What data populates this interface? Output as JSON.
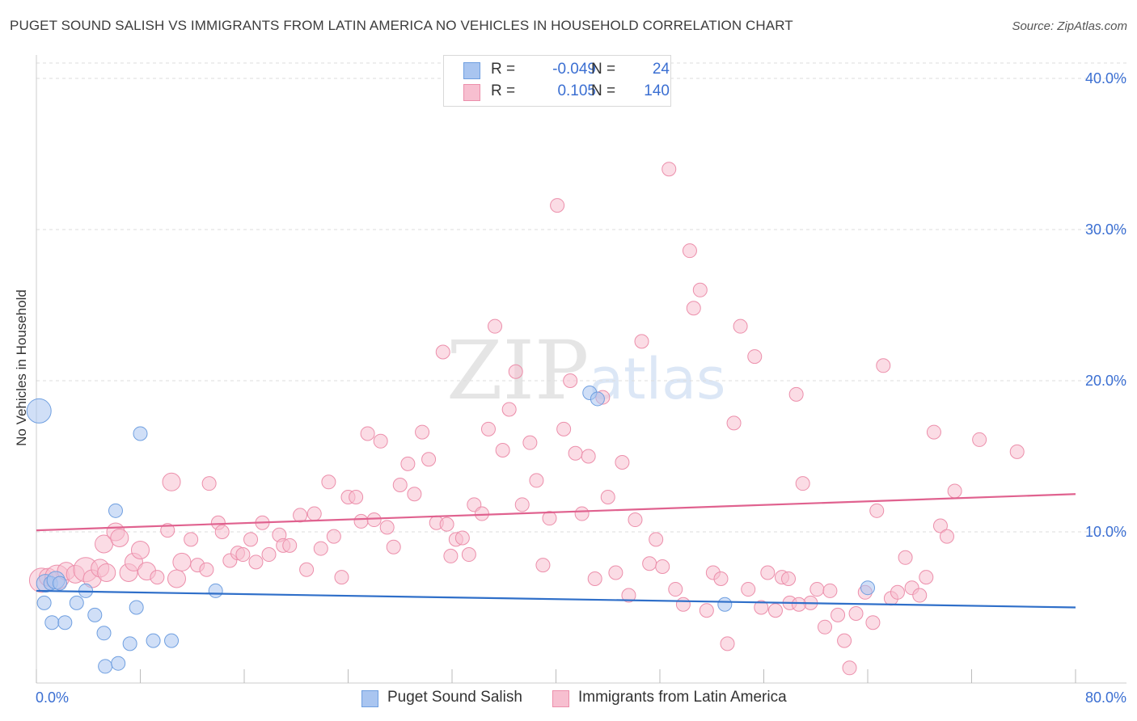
{
  "header": {
    "title": "PUGET SOUND SALISH VS IMMIGRANTS FROM LATIN AMERICA NO VEHICLES IN HOUSEHOLD CORRELATION CHART",
    "source": "Source: ZipAtlas.com"
  },
  "watermark": {
    "zip": "ZIP",
    "atlas": "atlas"
  },
  "legend": {
    "rows": [
      {
        "r_label": "R =",
        "r_value": "-0.049",
        "n_label": "N =",
        "n_value": "24",
        "color": "#a9c5f0",
        "border": "#6f9fe0"
      },
      {
        "r_label": "R =",
        "r_value": "0.105",
        "n_label": "N =",
        "n_value": "140",
        "color": "#f7bfd0",
        "border": "#ec8fab"
      }
    ]
  },
  "bottom_legend": [
    {
      "label": "Puget Sound Salish",
      "color": "#a9c5f0",
      "border": "#6f9fe0"
    },
    {
      "label": "Immigrants from Latin America",
      "color": "#f7bfd0",
      "border": "#ec8fab"
    }
  ],
  "chart_data": {
    "type": "scatter",
    "title": "PUGET SOUND SALISH VS IMMIGRANTS FROM LATIN AMERICA NO VEHICLES IN HOUSEHOLD CORRELATION CHART",
    "xlabel": "",
    "ylabel": "No Vehicles in Household",
    "xlim": [
      0,
      80
    ],
    "ylim": [
      0,
      40
    ],
    "x_tick_labels": [
      "0.0%",
      "80.0%"
    ],
    "y_tick_labels": [
      "10.0%",
      "20.0%",
      "30.0%",
      "40.0%"
    ],
    "y_ticks": [
      10,
      20,
      30,
      40
    ],
    "grid": true,
    "legend_position": "top-center",
    "series": [
      {
        "name": "Puget Sound Salish",
        "color": "#a9c5f0",
        "stroke": "#6f9fe0",
        "trend": {
          "x": [
            0,
            80
          ],
          "y": [
            6.1,
            5.0
          ],
          "color": "#2f6fc9"
        },
        "points": [
          [
            0.2,
            18.0,
            3
          ],
          [
            0.7,
            6.6,
            2
          ],
          [
            1.1,
            6.6,
            1
          ],
          [
            1.5,
            6.8,
            2
          ],
          [
            1.8,
            6.6,
            1
          ],
          [
            0.6,
            5.3,
            1
          ],
          [
            1.2,
            4.0,
            1
          ],
          [
            2.2,
            4.0,
            1
          ],
          [
            3.1,
            5.3,
            1
          ],
          [
            3.8,
            6.1,
            1
          ],
          [
            4.5,
            4.5,
            1
          ],
          [
            5.2,
            3.3,
            1
          ],
          [
            6.1,
            11.4,
            1
          ],
          [
            7.7,
            5.0,
            1
          ],
          [
            8.0,
            16.5,
            1
          ],
          [
            7.2,
            2.6,
            1
          ],
          [
            9.0,
            2.8,
            1
          ],
          [
            10.4,
            2.8,
            1
          ],
          [
            13.8,
            6.1,
            1
          ],
          [
            5.3,
            1.1,
            1
          ],
          [
            6.3,
            1.3,
            1
          ],
          [
            42.6,
            19.2,
            1
          ],
          [
            43.2,
            18.8,
            1
          ],
          [
            53.0,
            5.2,
            1
          ],
          [
            64.0,
            6.3,
            1
          ]
        ]
      },
      {
        "name": "Immigrants from Latin America",
        "color": "#f7bfd0",
        "stroke": "#ec8fab",
        "trend": {
          "x": [
            0,
            80
          ],
          "y": [
            10.1,
            12.5
          ],
          "color": "#e0628f"
        },
        "points": [
          [
            0.4,
            6.8,
            3
          ],
          [
            0.9,
            7.0,
            2
          ],
          [
            1.6,
            7.0,
            3
          ],
          [
            2.3,
            7.4,
            2
          ],
          [
            3.0,
            7.2,
            2
          ],
          [
            3.8,
            7.5,
            3
          ],
          [
            4.3,
            6.9,
            2
          ],
          [
            4.9,
            7.6,
            2
          ],
          [
            5.4,
            7.3,
            2
          ],
          [
            5.2,
            9.2,
            2
          ],
          [
            6.1,
            10.0,
            2
          ],
          [
            6.4,
            9.6,
            2
          ],
          [
            7.1,
            7.3,
            2
          ],
          [
            7.5,
            8.0,
            2
          ],
          [
            8.0,
            8.8,
            2
          ],
          [
            8.5,
            7.4,
            2
          ],
          [
            9.3,
            7.0,
            1
          ],
          [
            10.1,
            10.1,
            1
          ],
          [
            10.4,
            13.3,
            2
          ],
          [
            10.8,
            6.9,
            2
          ],
          [
            11.2,
            8.0,
            2
          ],
          [
            11.9,
            9.5,
            1
          ],
          [
            12.4,
            7.8,
            1
          ],
          [
            13.1,
            7.5,
            1
          ],
          [
            13.3,
            13.2,
            1
          ],
          [
            14.0,
            10.6,
            1
          ],
          [
            14.3,
            10.0,
            1
          ],
          [
            14.9,
            8.1,
            1
          ],
          [
            15.5,
            8.6,
            1
          ],
          [
            15.9,
            8.5,
            1
          ],
          [
            16.5,
            9.5,
            1
          ],
          [
            16.9,
            8.0,
            1
          ],
          [
            17.4,
            10.6,
            1
          ],
          [
            17.9,
            8.5,
            1
          ],
          [
            18.7,
            9.8,
            1
          ],
          [
            19.0,
            9.1,
            1
          ],
          [
            19.5,
            9.1,
            1
          ],
          [
            20.3,
            11.1,
            1
          ],
          [
            20.8,
            7.5,
            1
          ],
          [
            21.4,
            11.2,
            1
          ],
          [
            21.9,
            8.9,
            1
          ],
          [
            22.5,
            13.3,
            1
          ],
          [
            22.9,
            9.7,
            1
          ],
          [
            23.5,
            7.0,
            1
          ],
          [
            24.0,
            12.3,
            1
          ],
          [
            24.6,
            12.3,
            1
          ],
          [
            25.0,
            10.7,
            1
          ],
          [
            25.5,
            16.5,
            1
          ],
          [
            26.0,
            10.8,
            1
          ],
          [
            26.5,
            16.0,
            1
          ],
          [
            27.0,
            10.3,
            1
          ],
          [
            27.5,
            9.0,
            1
          ],
          [
            28.0,
            13.1,
            1
          ],
          [
            28.6,
            14.5,
            1
          ],
          [
            29.1,
            12.5,
            1
          ],
          [
            29.7,
            16.6,
            1
          ],
          [
            30.2,
            14.8,
            1
          ],
          [
            30.8,
            10.6,
            1
          ],
          [
            31.3,
            21.9,
            1
          ],
          [
            31.6,
            10.5,
            1
          ],
          [
            31.9,
            8.4,
            1
          ],
          [
            32.3,
            9.5,
            1
          ],
          [
            32.8,
            9.6,
            1
          ],
          [
            33.3,
            8.5,
            1
          ],
          [
            33.7,
            11.8,
            1
          ],
          [
            34.3,
            11.2,
            1
          ],
          [
            34.8,
            16.8,
            1
          ],
          [
            35.3,
            23.6,
            1
          ],
          [
            35.9,
            15.4,
            1
          ],
          [
            36.4,
            18.1,
            1
          ],
          [
            36.9,
            20.6,
            1
          ],
          [
            37.4,
            11.8,
            1
          ],
          [
            38.0,
            15.9,
            1
          ],
          [
            38.5,
            13.4,
            1
          ],
          [
            39.0,
            7.8,
            1
          ],
          [
            39.5,
            10.9,
            1
          ],
          [
            40.1,
            31.6,
            1
          ],
          [
            40.6,
            16.8,
            1
          ],
          [
            41.1,
            20.0,
            1
          ],
          [
            41.5,
            15.2,
            1
          ],
          [
            42.0,
            11.2,
            1
          ],
          [
            42.5,
            15.0,
            1
          ],
          [
            43.0,
            6.9,
            1
          ],
          [
            43.6,
            18.9,
            1
          ],
          [
            44.0,
            12.3,
            1
          ],
          [
            44.6,
            7.3,
            1
          ],
          [
            45.1,
            14.6,
            1
          ],
          [
            45.6,
            5.8,
            1
          ],
          [
            46.1,
            10.8,
            1
          ],
          [
            46.6,
            22.6,
            1
          ],
          [
            47.2,
            7.9,
            1
          ],
          [
            47.7,
            9.5,
            1
          ],
          [
            48.2,
            7.7,
            1
          ],
          [
            48.7,
            34.0,
            1
          ],
          [
            49.2,
            6.2,
            1
          ],
          [
            49.8,
            5.2,
            1
          ],
          [
            50.3,
            28.6,
            1
          ],
          [
            50.6,
            24.8,
            1
          ],
          [
            51.1,
            26.0,
            1
          ],
          [
            51.6,
            4.8,
            1
          ],
          [
            52.1,
            7.3,
            1
          ],
          [
            52.7,
            6.9,
            1
          ],
          [
            53.2,
            2.6,
            1
          ],
          [
            53.7,
            17.2,
            1
          ],
          [
            54.2,
            23.6,
            1
          ],
          [
            54.8,
            6.2,
            1
          ],
          [
            55.3,
            21.6,
            1
          ],
          [
            55.8,
            5.0,
            1
          ],
          [
            56.3,
            7.3,
            1
          ],
          [
            56.9,
            4.8,
            1
          ],
          [
            57.4,
            7.0,
            1
          ],
          [
            58.0,
            5.3,
            1
          ],
          [
            58.5,
            19.1,
            1
          ],
          [
            59.0,
            13.2,
            1
          ],
          [
            59.6,
            5.3,
            1
          ],
          [
            60.1,
            6.2,
            1
          ],
          [
            60.7,
            3.7,
            1
          ],
          [
            61.1,
            6.1,
            1
          ],
          [
            61.7,
            4.5,
            1
          ],
          [
            62.2,
            2.8,
            1
          ],
          [
            62.6,
            1.0,
            1
          ],
          [
            63.1,
            4.6,
            1
          ],
          [
            63.8,
            6.0,
            1
          ],
          [
            64.4,
            4.0,
            1
          ],
          [
            64.7,
            11.4,
            1
          ],
          [
            65.2,
            21.0,
            1
          ],
          [
            65.8,
            5.6,
            1
          ],
          [
            66.3,
            6.0,
            1
          ],
          [
            66.9,
            8.3,
            1
          ],
          [
            67.4,
            6.3,
            1
          ],
          [
            68.0,
            5.8,
            1
          ],
          [
            68.5,
            7.0,
            1
          ],
          [
            69.1,
            16.6,
            1
          ],
          [
            69.6,
            10.4,
            1
          ],
          [
            70.1,
            9.7,
            1
          ],
          [
            70.7,
            12.7,
            1
          ],
          [
            72.6,
            16.1,
            1
          ],
          [
            75.5,
            15.3,
            1
          ],
          [
            58.7,
            5.2,
            1
          ],
          [
            57.9,
            6.9,
            1
          ]
        ]
      }
    ]
  }
}
